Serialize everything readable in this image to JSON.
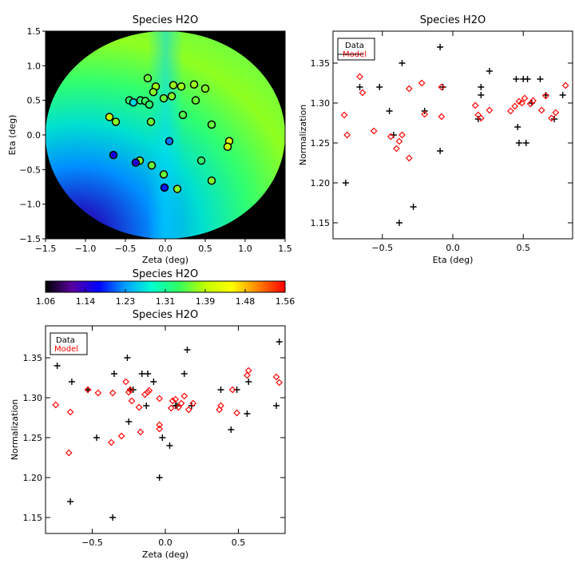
{
  "chart_data": [
    {
      "type": "scatter",
      "subtype": "field-map",
      "title": "Species H2O",
      "xlabel": "Zeta (deg)",
      "ylabel": "Eta (deg)",
      "xlim": [
        -1.5,
        1.5
      ],
      "ylim": [
        -1.5,
        1.5
      ],
      "xticks": [
        "−1.5",
        "−1.0",
        "−0.5",
        "0.0",
        "0.5",
        "1.0",
        "1.5"
      ],
      "yticks": [
        "−1.5",
        "−1.0",
        "−0.5",
        "0.0",
        "0.5",
        "1.0",
        "1.5"
      ],
      "points": [
        {
          "x": -0.22,
          "y": 0.82,
          "v": 1.36
        },
        {
          "x": -0.12,
          "y": 0.7,
          "v": 1.38
        },
        {
          "x": -0.15,
          "y": 0.62,
          "v": 1.37
        },
        {
          "x": 0.1,
          "y": 0.72,
          "v": 1.38
        },
        {
          "x": 0.2,
          "y": 0.7,
          "v": 1.38
        },
        {
          "x": 0.36,
          "y": 0.73,
          "v": 1.38
        },
        {
          "x": 0.5,
          "y": 0.67,
          "v": 1.37
        },
        {
          "x": -0.45,
          "y": 0.5,
          "v": 1.33
        },
        {
          "x": -0.4,
          "y": 0.47,
          "v": 1.26
        },
        {
          "x": -0.31,
          "y": 0.5,
          "v": 1.33
        },
        {
          "x": -0.25,
          "y": 0.49,
          "v": 1.34
        },
        {
          "x": -0.2,
          "y": 0.44,
          "v": 1.33
        },
        {
          "x": -0.02,
          "y": 0.53,
          "v": 1.36
        },
        {
          "x": 0.08,
          "y": 0.56,
          "v": 1.37
        },
        {
          "x": 0.38,
          "y": 0.5,
          "v": 1.36
        },
        {
          "x": -0.7,
          "y": 0.26,
          "v": 1.4
        },
        {
          "x": -0.62,
          "y": 0.19,
          "v": 1.37
        },
        {
          "x": -0.18,
          "y": 0.19,
          "v": 1.36
        },
        {
          "x": 0.22,
          "y": 0.29,
          "v": 1.35
        },
        {
          "x": 0.58,
          "y": 0.15,
          "v": 1.36
        },
        {
          "x": 0.8,
          "y": -0.09,
          "v": 1.42
        },
        {
          "x": 0.78,
          "y": -0.17,
          "v": 1.4
        },
        {
          "x": 0.05,
          "y": -0.09,
          "v": 1.21
        },
        {
          "x": -0.65,
          "y": -0.29,
          "v": 1.16
        },
        {
          "x": -0.32,
          "y": -0.37,
          "v": 1.37
        },
        {
          "x": -0.37,
          "y": -0.4,
          "v": 1.15
        },
        {
          "x": -0.17,
          "y": -0.44,
          "v": 1.36
        },
        {
          "x": -0.02,
          "y": -0.57,
          "v": 1.36
        },
        {
          "x": 0.45,
          "y": -0.37,
          "v": 1.33
        },
        {
          "x": 0.58,
          "y": -0.66,
          "v": 1.37
        },
        {
          "x": -0.01,
          "y": -0.76,
          "v": 1.18
        },
        {
          "x": 0.15,
          "y": -0.78,
          "v": 1.37
        }
      ]
    },
    {
      "type": "colorbar",
      "title": "Species H2O",
      "range": [
        1.06,
        1.56
      ],
      "ticks": [
        "1.06",
        "1.14",
        "1.23",
        "1.31",
        "1.39",
        "1.48",
        "1.56"
      ],
      "colors": [
        "#000000",
        "#5a00a0",
        "#0000ff",
        "#00a0ff",
        "#00ffd0",
        "#30ff60",
        "#c0ff00",
        "#ffff00",
        "#ff8000",
        "#ff0000"
      ]
    },
    {
      "type": "scatter",
      "title": "Species H2O",
      "xlabel": "Eta (deg)",
      "ylabel": "Normalization",
      "xlim": [
        -0.85,
        0.85
      ],
      "ylim": [
        1.13,
        1.39
      ],
      "xticks": [
        "−0.5",
        "0.0",
        "0.5"
      ],
      "yticks": [
        "1.15",
        "1.20",
        "1.25",
        "1.30",
        "1.35"
      ],
      "legend": [
        "Data",
        "Model"
      ],
      "series": [
        {
          "name": "Data",
          "marker": "plus",
          "color": "#000000",
          "x": [
            -0.76,
            -0.66,
            -0.52,
            -0.45,
            -0.42,
            -0.38,
            -0.36,
            -0.28,
            -0.2,
            -0.09,
            -0.09,
            -0.07,
            0.18,
            0.2,
            0.2,
            0.26,
            0.45,
            0.46,
            0.47,
            0.5,
            0.52,
            0.53,
            0.56,
            0.62,
            0.66,
            0.72,
            0.78
          ],
          "y": [
            1.2,
            1.32,
            1.32,
            1.29,
            1.26,
            1.15,
            1.35,
            1.17,
            1.29,
            1.37,
            1.24,
            1.32,
            1.28,
            1.32,
            1.31,
            1.34,
            1.33,
            1.27,
            1.25,
            1.33,
            1.25,
            1.33,
            1.3,
            1.33,
            1.31,
            1.28,
            1.31
          ]
        },
        {
          "name": "Model",
          "marker": "diamond",
          "color": "#ff0000",
          "x": [
            -0.77,
            -0.75,
            -0.66,
            -0.64,
            -0.56,
            -0.44,
            -0.4,
            -0.38,
            -0.36,
            -0.31,
            -0.31,
            -0.22,
            -0.2,
            -0.08,
            -0.08,
            0.16,
            0.18,
            0.2,
            0.26,
            0.41,
            0.44,
            0.47,
            0.49,
            0.51,
            0.55,
            0.57,
            0.63,
            0.66,
            0.7,
            0.73,
            0.8
          ],
          "y": [
            1.285,
            1.26,
            1.333,
            1.313,
            1.265,
            1.258,
            1.243,
            1.252,
            1.26,
            1.318,
            1.231,
            1.325,
            1.286,
            1.32,
            1.283,
            1.297,
            1.285,
            1.281,
            1.291,
            1.29,
            1.296,
            1.302,
            1.3,
            1.306,
            1.299,
            1.303,
            1.291,
            1.309,
            1.281,
            1.288,
            1.322
          ]
        }
      ]
    },
    {
      "type": "scatter",
      "title": "Species H2O",
      "xlabel": "Zeta (deg)",
      "ylabel": "Normalization",
      "xlim": [
        -0.82,
        0.82
      ],
      "ylim": [
        1.13,
        1.39
      ],
      "xticks": [
        "−0.5",
        "0.0",
        "0.5"
      ],
      "yticks": [
        "1.15",
        "1.20",
        "1.25",
        "1.30",
        "1.35"
      ],
      "legend": [
        "Data",
        "Model"
      ],
      "series": [
        {
          "name": "Data",
          "marker": "plus",
          "color": "#000000",
          "x": [
            -0.74,
            -0.65,
            -0.64,
            -0.53,
            -0.47,
            -0.36,
            -0.35,
            -0.26,
            -0.25,
            -0.24,
            -0.22,
            -0.16,
            -0.13,
            -0.12,
            -0.08,
            -0.04,
            -0.02,
            0.03,
            0.07,
            0.08,
            0.13,
            0.15,
            0.18,
            0.38,
            0.45,
            0.49,
            0.56,
            0.57,
            0.76,
            0.78
          ],
          "y": [
            1.34,
            1.17,
            1.32,
            1.31,
            1.25,
            1.15,
            1.33,
            1.35,
            1.27,
            1.31,
            1.31,
            1.33,
            1.29,
            1.33,
            1.32,
            1.2,
            1.25,
            1.24,
            1.29,
            1.29,
            1.33,
            1.36,
            1.29,
            1.31,
            1.26,
            1.31,
            1.28,
            1.32,
            1.29,
            1.37
          ]
        },
        {
          "name": "Model",
          "marker": "diamond",
          "color": "#ff0000",
          "x": [
            -0.75,
            -0.66,
            -0.65,
            -0.53,
            -0.46,
            -0.37,
            -0.36,
            -0.3,
            -0.27,
            -0.25,
            -0.24,
            -0.23,
            -0.18,
            -0.17,
            -0.14,
            -0.12,
            -0.11,
            -0.04,
            -0.04,
            -0.04,
            0.04,
            0.05,
            0.07,
            0.09,
            0.11,
            0.13,
            0.16,
            0.19,
            0.37,
            0.38,
            0.46,
            0.49,
            0.56,
            0.57,
            0.76,
            0.78
          ],
          "y": [
            1.291,
            1.231,
            1.282,
            1.31,
            1.306,
            1.244,
            1.306,
            1.252,
            1.32,
            1.307,
            1.31,
            1.296,
            1.288,
            1.257,
            1.304,
            1.307,
            1.309,
            1.266,
            1.261,
            1.299,
            1.287,
            1.296,
            1.298,
            1.288,
            1.293,
            1.302,
            1.285,
            1.293,
            1.285,
            1.29,
            1.31,
            1.281,
            1.328,
            1.334,
            1.326,
            1.319
          ]
        }
      ]
    }
  ]
}
